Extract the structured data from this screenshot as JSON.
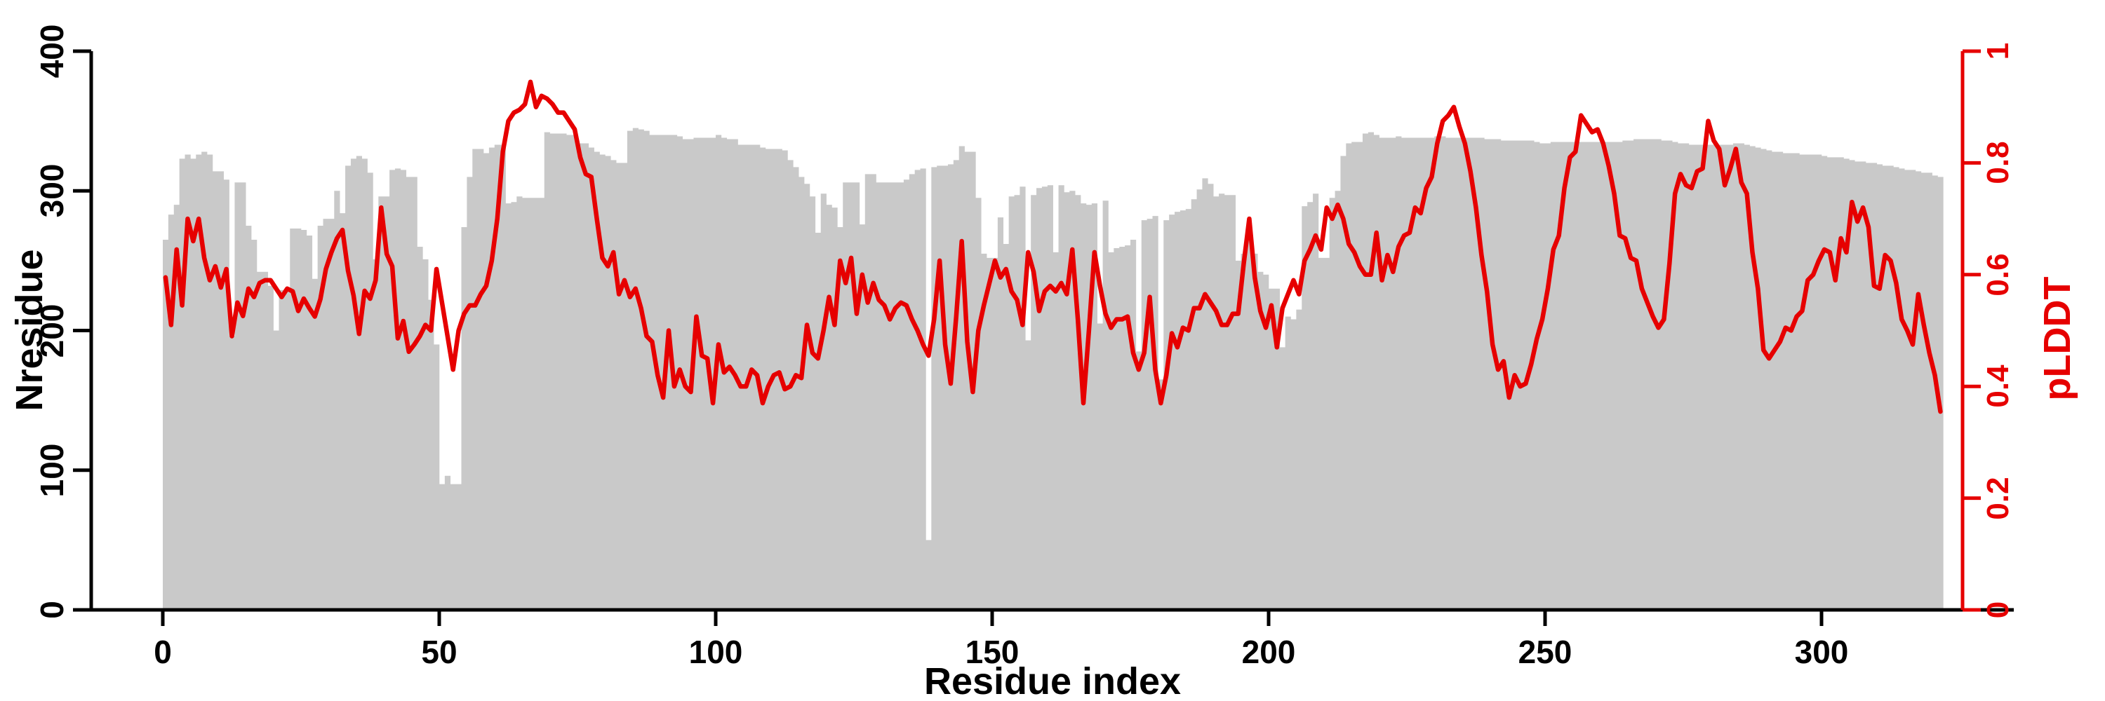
{
  "chart_data": {
    "type": "bar+line dual-axis per-residue profile",
    "title": "",
    "xlabel": "Residue index",
    "ylabel_left": "Nresidue",
    "ylabel_right": "pLDDT",
    "x_ticks": [
      0,
      50,
      100,
      150,
      200,
      250,
      300
    ],
    "y_ticks_left": [
      0,
      100,
      200,
      300,
      400
    ],
    "y_ticks_right_labels": [
      "0",
      "0.2",
      "0.4",
      "0.6",
      "0.8",
      "1"
    ],
    "y_ticks_right_values": [
      0,
      0.2,
      0.4,
      0.6,
      0.8,
      1
    ],
    "ylim_left": [
      0,
      400
    ],
    "ylim_right": [
      0,
      1
    ],
    "n_residues": 322,
    "grid": false,
    "legend": "none",
    "colors": {
      "bar": "#c9c9c9",
      "line": "#e60000",
      "axis_left": "#000000",
      "axis_right": "#e60000",
      "background": "#ffffff"
    },
    "series": [
      {
        "name": "Nresidue",
        "type": "bar",
        "axis": "left",
        "color": "#c9c9c9",
        "values": [
          265,
          283,
          290,
          323,
          326,
          323,
          326,
          328,
          326,
          314,
          314,
          308,
          196,
          306,
          306,
          275,
          265,
          242,
          242,
          232,
          200,
          229,
          229,
          273,
          273,
          272,
          268,
          237,
          275,
          280,
          280,
          300,
          284,
          318,
          323,
          325,
          323,
          313,
          251,
          296,
          296,
          315,
          316,
          315,
          310,
          310,
          260,
          251,
          222,
          190,
          90,
          96,
          90,
          90,
          274,
          310,
          330,
          330,
          327,
          331,
          333,
          333,
          291,
          292,
          296,
          295,
          295,
          295,
          295,
          342,
          341,
          341,
          341,
          340,
          340,
          334,
          334,
          331,
          328,
          326,
          325,
          322,
          320,
          320,
          343,
          345,
          344,
          343,
          340,
          340,
          340,
          340,
          340,
          339,
          337,
          337,
          338,
          338,
          338,
          338,
          340,
          338,
          337,
          337,
          333,
          333,
          333,
          333,
          331,
          330,
          330,
          330,
          329,
          322,
          317,
          310,
          305,
          296,
          270,
          298,
          290,
          288,
          274,
          306,
          306,
          306,
          276,
          312,
          312,
          306,
          306,
          306,
          306,
          306,
          308,
          312,
          315,
          316,
          50,
          317,
          318,
          318,
          319,
          322,
          332,
          328,
          328,
          295,
          255,
          252,
          252,
          281,
          262,
          296,
          297,
          303,
          193,
          297,
          302,
          303,
          304,
          256,
          304,
          299,
          300,
          297,
          291,
          290,
          291,
          205,
          293,
          256,
          259,
          260,
          261,
          265,
          185,
          279,
          280,
          282,
          165,
          279,
          283,
          285,
          286,
          287,
          294,
          301,
          309,
          305,
          296,
          298,
          297,
          297,
          250,
          255,
          268,
          255,
          242,
          240,
          230,
          230,
          188,
          210,
          208,
          215,
          289,
          292,
          298,
          252,
          252,
          295,
          300,
          325,
          334,
          335,
          335,
          341,
          342,
          340,
          338,
          338,
          338,
          339,
          338,
          338,
          338,
          338,
          338,
          338,
          339,
          339,
          338,
          338,
          338,
          338,
          338,
          338,
          338,
          337,
          337,
          337,
          336,
          336,
          336,
          336,
          336,
          336,
          335,
          334,
          334,
          335,
          335,
          335,
          335,
          335,
          335,
          335,
          335,
          335,
          335,
          335,
          335,
          335,
          336,
          336,
          337,
          337,
          337,
          337,
          337,
          336,
          336,
          335,
          334,
          334,
          333,
          333,
          333,
          333,
          333,
          333,
          333,
          333,
          334,
          334,
          333,
          332,
          331,
          330,
          329,
          328,
          328,
          327,
          327,
          327,
          326,
          326,
          326,
          326,
          325,
          324,
          324,
          324,
          323,
          322,
          321,
          321,
          320,
          320,
          319,
          318,
          318,
          317,
          316,
          315,
          315,
          314,
          313,
          313,
          311,
          310
        ]
      },
      {
        "name": "pLDDT",
        "type": "line",
        "axis": "right",
        "color": "#e60000",
        "values": [
          0.595,
          0.51,
          0.645,
          0.545,
          0.7,
          0.66,
          0.7,
          0.63,
          0.59,
          0.615,
          0.577,
          0.61,
          0.49,
          0.55,
          0.526,
          0.575,
          0.56,
          0.585,
          0.59,
          0.59,
          0.575,
          0.56,
          0.575,
          0.57,
          0.535,
          0.557,
          0.54,
          0.525,
          0.556,
          0.61,
          0.64,
          0.665,
          0.68,
          0.607,
          0.563,
          0.494,
          0.571,
          0.557,
          0.59,
          0.72,
          0.637,
          0.615,
          0.486,
          0.517,
          0.462,
          0.475,
          0.49,
          0.51,
          0.5,
          0.61,
          0.55,
          0.49,
          0.43,
          0.5,
          0.53,
          0.545,
          0.545,
          0.565,
          0.58,
          0.625,
          0.7,
          0.82,
          0.875,
          0.89,
          0.895,
          0.905,
          0.945,
          0.9,
          0.92,
          0.915,
          0.905,
          0.89,
          0.89,
          0.875,
          0.86,
          0.81,
          0.78,
          0.775,
          0.7,
          0.63,
          0.615,
          0.64,
          0.565,
          0.59,
          0.56,
          0.575,
          0.54,
          0.49,
          0.48,
          0.42,
          0.38,
          0.5,
          0.4,
          0.43,
          0.4,
          0.39,
          0.525,
          0.455,
          0.45,
          0.37,
          0.475,
          0.425,
          0.435,
          0.42,
          0.4,
          0.4,
          0.43,
          0.42,
          0.37,
          0.4,
          0.42,
          0.425,
          0.395,
          0.4,
          0.42,
          0.415,
          0.51,
          0.46,
          0.45,
          0.5,
          0.56,
          0.51,
          0.625,
          0.585,
          0.63,
          0.53,
          0.6,
          0.55,
          0.585,
          0.555,
          0.545,
          0.52,
          0.54,
          0.55,
          0.545,
          0.52,
          0.5,
          0.475,
          0.455,
          0.52,
          0.625,
          0.475,
          0.405,
          0.525,
          0.66,
          0.48,
          0.39,
          0.5,
          0.545,
          0.585,
          0.625,
          0.595,
          0.61,
          0.57,
          0.555,
          0.51,
          0.64,
          0.605,
          0.535,
          0.57,
          0.58,
          0.57,
          0.585,
          0.565,
          0.645,
          0.52,
          0.37,
          0.5,
          0.64,
          0.58,
          0.53,
          0.505,
          0.52,
          0.52,
          0.525,
          0.46,
          0.43,
          0.46,
          0.56,
          0.43,
          0.37,
          0.42,
          0.495,
          0.47,
          0.505,
          0.5,
          0.54,
          0.54,
          0.565,
          0.55,
          0.535,
          0.51,
          0.51,
          0.53,
          0.53,
          0.62,
          0.7,
          0.595,
          0.535,
          0.505,
          0.545,
          0.47,
          0.54,
          0.565,
          0.59,
          0.565,
          0.625,
          0.645,
          0.67,
          0.645,
          0.72,
          0.7,
          0.725,
          0.7,
          0.655,
          0.64,
          0.615,
          0.6,
          0.6,
          0.675,
          0.59,
          0.635,
          0.605,
          0.65,
          0.67,
          0.675,
          0.72,
          0.71,
          0.755,
          0.775,
          0.835,
          0.875,
          0.885,
          0.9,
          0.865,
          0.835,
          0.785,
          0.72,
          0.635,
          0.57,
          0.475,
          0.43,
          0.445,
          0.38,
          0.42,
          0.4,
          0.405,
          0.44,
          0.485,
          0.52,
          0.575,
          0.645,
          0.67,
          0.755,
          0.81,
          0.82,
          0.885,
          0.87,
          0.855,
          0.86,
          0.835,
          0.795,
          0.745,
          0.67,
          0.665,
          0.63,
          0.625,
          0.575,
          0.55,
          0.525,
          0.505,
          0.52,
          0.62,
          0.745,
          0.78,
          0.76,
          0.755,
          0.785,
          0.79,
          0.875,
          0.84,
          0.825,
          0.76,
          0.79,
          0.825,
          0.765,
          0.745,
          0.64,
          0.575,
          0.465,
          0.45,
          0.465,
          0.48,
          0.505,
          0.5,
          0.525,
          0.535,
          0.59,
          0.6,
          0.625,
          0.645,
          0.64,
          0.59,
          0.665,
          0.64,
          0.73,
          0.695,
          0.72,
          0.685,
          0.58,
          0.575,
          0.635,
          0.625,
          0.585,
          0.52,
          0.5,
          0.475,
          0.565,
          0.51,
          0.46,
          0.42,
          0.355
        ]
      }
    ]
  }
}
